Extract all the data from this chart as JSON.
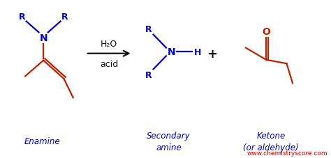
{
  "bg_color": "#ffffff",
  "blue": "#0000cc",
  "red": "#bb2200",
  "black": "#111111",
  "crimson": "#cc0000",
  "label_enamine": "Enamine",
  "label_secondary": "Secondary\namine",
  "label_ketone": "Ketone\n(or aldehyde)",
  "label_h2o": "H₂O",
  "label_acid": "acid",
  "label_plus": "+",
  "label_website": "www.chemistryscore.com",
  "figsize": [
    4.74,
    2.28
  ],
  "dpi": 100
}
